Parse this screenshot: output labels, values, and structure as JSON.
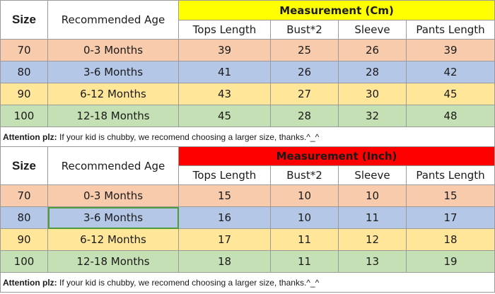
{
  "tables": [
    {
      "id": "cm",
      "header": {
        "size": "Size",
        "age": "Recommended Age",
        "measurement": "Measurement (Cm)",
        "measurement_color": "#ffff00",
        "columns": [
          "Tops Length",
          "Bust*2",
          "Sleeve",
          "Pants Length"
        ]
      },
      "rows": [
        {
          "size": "70",
          "age": "0-3 Months",
          "values": [
            "39",
            "25",
            "26",
            "39"
          ],
          "color": "#f8cbad"
        },
        {
          "size": "80",
          "age": "3-6 Months",
          "values": [
            "41",
            "26",
            "28",
            "42"
          ],
          "color": "#b4c7e7"
        },
        {
          "size": "90",
          "age": "6-12 Months",
          "values": [
            "43",
            "27",
            "30",
            "45"
          ],
          "color": "#ffe699"
        },
        {
          "size": "100",
          "age": "12-18 Months",
          "values": [
            "45",
            "28",
            "32",
            "48"
          ],
          "color": "#c5e0b4"
        }
      ],
      "note": {
        "label": "Attention plz:",
        "text": " If your kid is chubby, we recomend choosing a larger size, thanks.^_^"
      }
    },
    {
      "id": "inch",
      "header": {
        "size": "Size",
        "age": "Recommended Age",
        "measurement": "Measurement (Inch)",
        "measurement_color": "#ff0000",
        "columns": [
          "Tops Length",
          "Bust*2",
          "Sleeve",
          "Pants Length"
        ]
      },
      "rows": [
        {
          "size": "70",
          "age": "0-3 Months",
          "values": [
            "15",
            "10",
            "10",
            "15"
          ],
          "color": "#f8cbad"
        },
        {
          "size": "80",
          "age": "3-6 Months",
          "values": [
            "16",
            "10",
            "11",
            "17"
          ],
          "color": "#b4c7e7"
        },
        {
          "size": "90",
          "age": "6-12 Months",
          "values": [
            "17",
            "11",
            "12",
            "18"
          ],
          "color": "#ffe699"
        },
        {
          "size": "100",
          "age": "12-18 Months",
          "values": [
            "18",
            "11",
            "13",
            "19"
          ],
          "color": "#c5e0b4"
        }
      ],
      "note": {
        "label": "Attention plz:",
        "text": " If your kid is chubby, we recomend choosing a larger size, thanks.^_^"
      }
    }
  ]
}
